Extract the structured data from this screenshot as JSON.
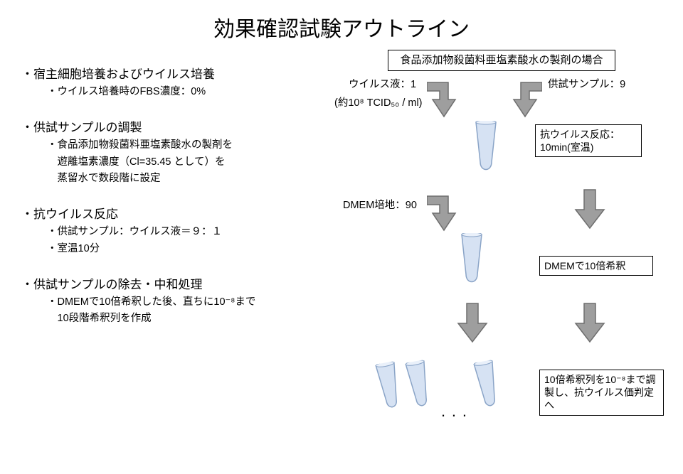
{
  "title": "効果確認試験アウトライン",
  "left": {
    "sections": [
      {
        "heading": "・宿主細胞培養およびウイルス培養",
        "subs": [
          "・ウイルス培養時のFBS濃度：0%"
        ]
      },
      {
        "heading": "・供試サンプルの調製",
        "subs": [
          "・食品添加物殺菌料亜塩素酸水の製剤を",
          "　遊離塩素濃度（Cl=35.45 として）を",
          "　蒸留水で数段階に設定"
        ]
      },
      {
        "heading": "・抗ウイルス反応",
        "subs": [
          "・供試サンプル：ウイルス液＝９：１",
          "・室温10分"
        ]
      },
      {
        "heading": "・供試サンプルの除去・中和処理",
        "subs": [
          "・DMEMで10倍希釈した後、直ちに10⁻⁸まで",
          "　10段階希釈列を作成"
        ]
      }
    ]
  },
  "right": {
    "header_box": "食品添加物殺菌料亜塩素酸水の製剤の場合",
    "virus_label": "ウイルス液：1",
    "virus_sub": "(約10⁸ TCID₅₀ / ml)",
    "sample_label": "供試サンプル：9",
    "reaction_box": "抗ウイルス反応：\n10min(室温)",
    "dmem_label": "DMEM培地：90",
    "dilution_box": "DMEMで10倍希釈",
    "final_box": "10倍希釈列を10⁻⁸まで調製し、抗ウイルス価判定へ",
    "dots": "..."
  },
  "colors": {
    "arrow_fill": "#9e9e9e",
    "arrow_stroke": "#6e6e6e",
    "tube_fill": "#d6e2f3",
    "tube_stroke": "#8aa4c7"
  }
}
